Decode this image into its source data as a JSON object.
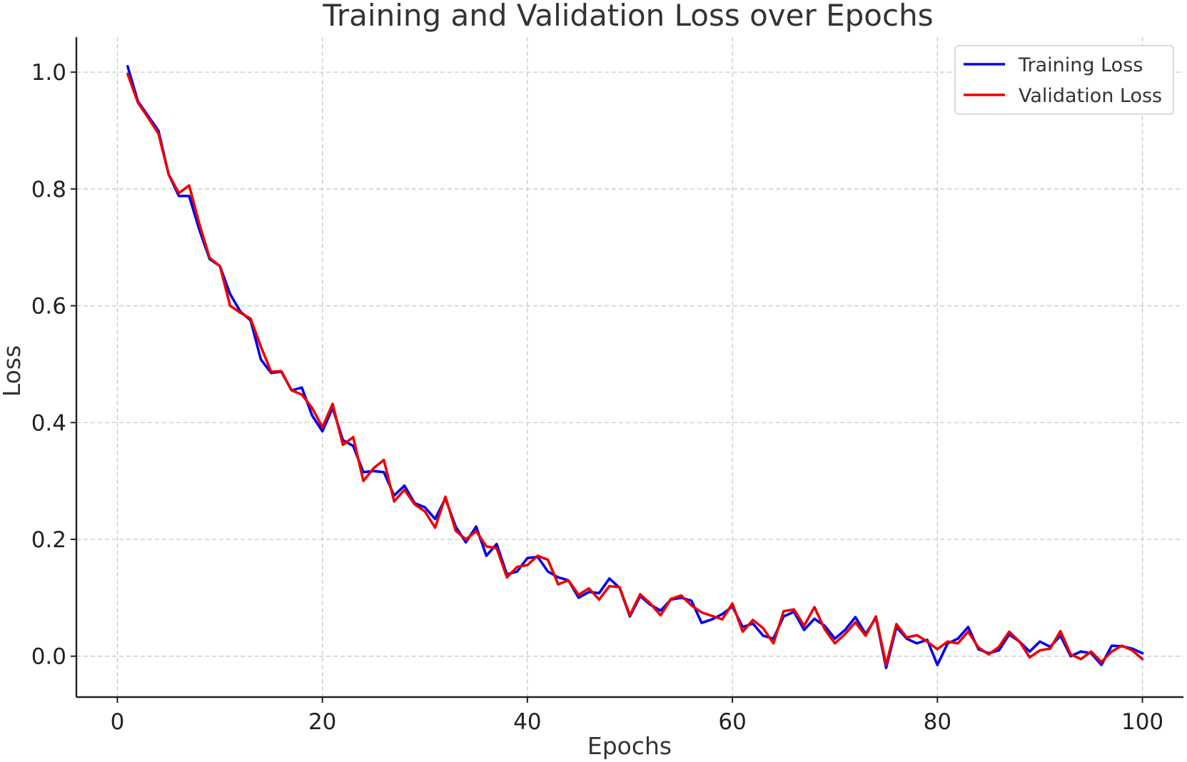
{
  "chart_data": {
    "type": "line",
    "title": "Training and Validation Loss over Epochs",
    "xlabel": "Epochs",
    "ylabel": "Loss",
    "xlim": [
      -4,
      104
    ],
    "ylim": [
      -0.07,
      1.06
    ],
    "xticks": [
      0,
      20,
      40,
      60,
      80,
      100
    ],
    "yticks": [
      0.0,
      0.2,
      0.4,
      0.6,
      0.8,
      1.0
    ],
    "xtick_labels": [
      "0",
      "20",
      "40",
      "60",
      "80",
      "100"
    ],
    "ytick_labels": [
      "0.0",
      "0.2",
      "0.4",
      "0.6",
      "0.8",
      "1.0"
    ],
    "grid": true,
    "legend_position": "top-right",
    "x": [
      1,
      2,
      3,
      4,
      5,
      6,
      7,
      8,
      9,
      10,
      11,
      12,
      13,
      14,
      15,
      16,
      17,
      18,
      19,
      20,
      21,
      22,
      23,
      24,
      25,
      26,
      27,
      28,
      29,
      30,
      31,
      32,
      33,
      34,
      35,
      36,
      37,
      38,
      39,
      40,
      41,
      42,
      43,
      44,
      45,
      46,
      47,
      48,
      49,
      50,
      51,
      52,
      53,
      54,
      55,
      56,
      57,
      58,
      59,
      60,
      61,
      62,
      63,
      64,
      65,
      66,
      67,
      68,
      69,
      70,
      71,
      72,
      73,
      74,
      75,
      76,
      77,
      78,
      79,
      80,
      81,
      82,
      83,
      84,
      85,
      86,
      87,
      88,
      89,
      90,
      91,
      92,
      93,
      94,
      95,
      96,
      97,
      98,
      99,
      100
    ],
    "series": [
      {
        "name": "Training Loss",
        "color": "#0000ee",
        "values": [
          1.01,
          0.95,
          0.925,
          0.9,
          0.825,
          0.788,
          0.788,
          0.73,
          0.68,
          0.668,
          0.62,
          0.59,
          0.575,
          0.508,
          0.485,
          0.487,
          0.455,
          0.46,
          0.412,
          0.385,
          0.425,
          0.37,
          0.36,
          0.315,
          0.317,
          0.315,
          0.275,
          0.292,
          0.262,
          0.255,
          0.235,
          0.27,
          0.222,
          0.195,
          0.222,
          0.172,
          0.192,
          0.14,
          0.145,
          0.168,
          0.17,
          0.145,
          0.135,
          0.13,
          0.1,
          0.11,
          0.108,
          0.133,
          0.117,
          0.068,
          0.103,
          0.088,
          0.078,
          0.097,
          0.1,
          0.095,
          0.057,
          0.063,
          0.072,
          0.085,
          0.05,
          0.056,
          0.035,
          0.03,
          0.068,
          0.076,
          0.045,
          0.064,
          0.052,
          0.03,
          0.045,
          0.067,
          0.038,
          0.066,
          -0.02,
          0.05,
          0.03,
          0.022,
          0.028,
          -0.015,
          0.022,
          0.03,
          0.05,
          0.012,
          0.005,
          0.01,
          0.037,
          0.025,
          0.008,
          0.025,
          0.016,
          0.035,
          0.0,
          0.008,
          0.005,
          -0.015,
          0.018,
          0.017,
          0.013,
          0.005
        ]
      },
      {
        "name": "Validation Loss",
        "color": "#ee0000",
        "values": [
          0.997,
          0.948,
          0.922,
          0.895,
          0.825,
          0.793,
          0.806,
          0.74,
          0.682,
          0.668,
          0.6,
          0.588,
          0.578,
          0.53,
          0.487,
          0.488,
          0.455,
          0.448,
          0.425,
          0.392,
          0.432,
          0.362,
          0.375,
          0.3,
          0.322,
          0.336,
          0.265,
          0.285,
          0.26,
          0.248,
          0.22,
          0.273,
          0.215,
          0.2,
          0.214,
          0.188,
          0.185,
          0.135,
          0.153,
          0.156,
          0.172,
          0.165,
          0.123,
          0.13,
          0.105,
          0.116,
          0.097,
          0.12,
          0.118,
          0.07,
          0.106,
          0.09,
          0.07,
          0.098,
          0.104,
          0.087,
          0.075,
          0.069,
          0.063,
          0.09,
          0.042,
          0.062,
          0.048,
          0.022,
          0.077,
          0.08,
          0.052,
          0.084,
          0.046,
          0.022,
          0.038,
          0.058,
          0.035,
          0.068,
          -0.015,
          0.055,
          0.032,
          0.036,
          0.025,
          0.012,
          0.025,
          0.022,
          0.042,
          0.015,
          0.003,
          0.016,
          0.042,
          0.025,
          -0.002,
          0.01,
          0.013,
          0.043,
          0.003,
          -0.005,
          0.008,
          -0.01,
          0.008,
          0.018,
          0.01,
          -0.005
        ]
      }
    ]
  }
}
